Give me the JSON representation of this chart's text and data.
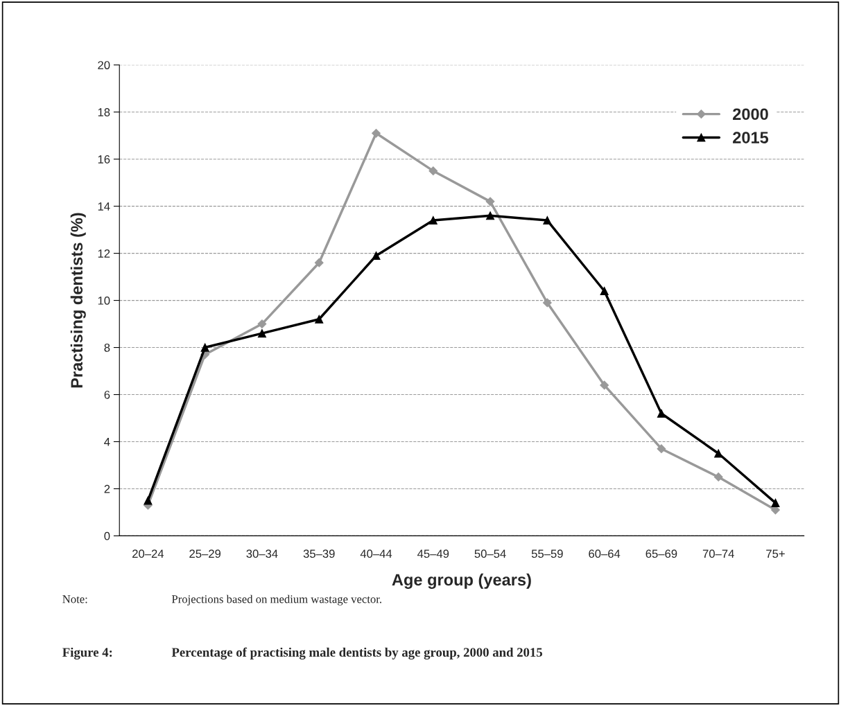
{
  "chart_data": {
    "type": "line",
    "title": "Percentage of practising male dentists by age group, 2000 and 2015",
    "xlabel": "Age group (years)",
    "ylabel": "Practising dentists (%)",
    "annotations": [
      "Note:",
      "Projections based on medium wastage vector.",
      "Figure 4:"
    ],
    "categories": [
      "20–24",
      "25–29",
      "30–34",
      "35–39",
      "40–44",
      "45–49",
      "50–54",
      "55–59",
      "60–64",
      "65–69",
      "70–74",
      "75+"
    ],
    "series": [
      {
        "name": "2000",
        "color": "#999999",
        "marker": "diamond",
        "values": [
          1.3,
          7.7,
          9.0,
          11.6,
          17.1,
          15.5,
          14.2,
          9.9,
          6.4,
          3.7,
          2.5,
          1.1
        ]
      },
      {
        "name": "2015",
        "color": "#000000",
        "marker": "triangle",
        "values": [
          1.5,
          8.0,
          8.6,
          9.2,
          11.9,
          13.4,
          13.6,
          13.4,
          10.4,
          5.2,
          3.5,
          1.4
        ]
      }
    ],
    "ylim": [
      0,
      20
    ],
    "yticks": [
      0,
      2,
      4,
      6,
      8,
      10,
      12,
      14,
      16,
      18,
      20
    ],
    "grid": "y",
    "legend": "top right",
    "line_style": "solid"
  }
}
